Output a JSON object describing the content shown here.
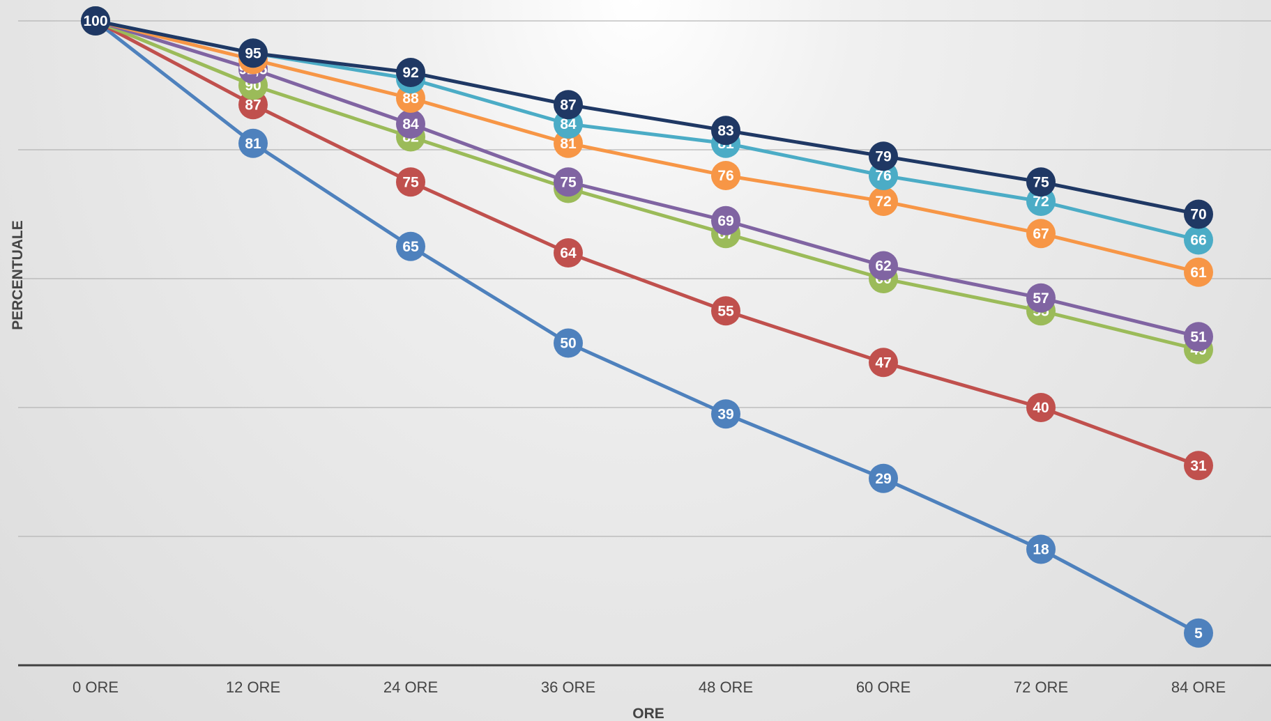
{
  "chart_data": {
    "type": "line",
    "title": "",
    "xlabel": "ORE",
    "ylabel": "PERCENTUALE",
    "categories": [
      "0 ORE",
      "12 ORE",
      "24 ORE",
      "36 ORE",
      "48 ORE",
      "60 ORE",
      "72 ORE",
      "84 ORE"
    ],
    "ylim": [
      0,
      100
    ],
    "grid": true,
    "legend": "none",
    "series": [
      {
        "color": "#4e81bd",
        "values": [
          100,
          81,
          65,
          50,
          39,
          29,
          18,
          5
        ],
        "labels": [
          "100",
          "81",
          "65",
          "50",
          "39",
          "29",
          "18",
          "5"
        ]
      },
      {
        "color": "#c0504d",
        "values": [
          100,
          87,
          75,
          64,
          55,
          47,
          40,
          31
        ],
        "labels": [
          "100",
          "87",
          "75",
          "64",
          "55",
          "47",
          "40",
          "31"
        ]
      },
      {
        "color": "#9bbb59",
        "values": [
          100,
          90,
          82,
          74,
          67,
          60,
          55,
          49
        ],
        "labels": [
          "100",
          "90",
          "82",
          "74",
          "67",
          "60",
          "55",
          "49"
        ]
      },
      {
        "color": "#8064a2",
        "values": [
          100,
          92.5,
          84,
          75,
          69,
          62,
          57,
          51
        ],
        "labels": [
          "100",
          "92,5",
          "84",
          "75",
          "69",
          "62",
          "57",
          "51"
        ]
      },
      {
        "color": "#f79646",
        "values": [
          100,
          94,
          88,
          81,
          76,
          72,
          67,
          61
        ],
        "labels": [
          "100",
          "94",
          "88",
          "81",
          "76",
          "72",
          "67",
          "61"
        ]
      },
      {
        "color": "#4bacc6",
        "values": [
          100,
          95,
          91,
          84,
          81,
          76,
          72,
          66
        ],
        "labels": [
          "100",
          "95",
          "91",
          "84",
          "81",
          "76",
          "72",
          "66"
        ]
      },
      {
        "color": "#1f3864",
        "values": [
          100,
          95,
          92,
          87,
          83,
          79,
          75,
          70
        ],
        "labels": [
          "100",
          "95",
          "92",
          "87",
          "83",
          "79",
          "75",
          "70"
        ]
      }
    ]
  }
}
